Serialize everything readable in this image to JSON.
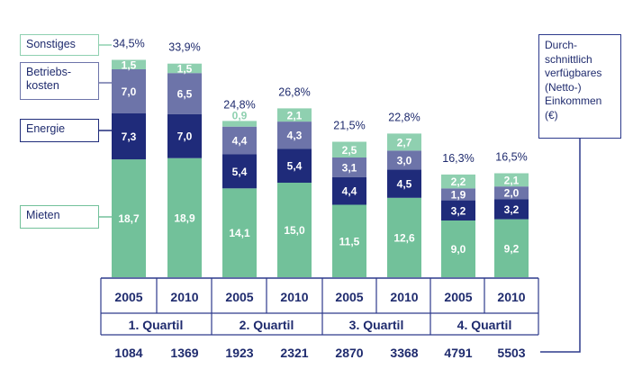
{
  "chart_data": {
    "type": "bar",
    "stacked": true,
    "categories": [
      "2005",
      "2010",
      "2005",
      "2010",
      "2005",
      "2010",
      "2005",
      "2010"
    ],
    "groups": [
      {
        "label": "1. Quartil",
        "years": [
          "2005",
          "2010"
        ]
      },
      {
        "label": "2. Quartil",
        "years": [
          "2005",
          "2010"
        ]
      },
      {
        "label": "3. Quartil",
        "years": [
          "2005",
          "2010"
        ]
      },
      {
        "label": "4. Quartil",
        "years": [
          "2005",
          "2010"
        ]
      }
    ],
    "series": [
      {
        "name": "Mieten",
        "color": "#72c19a",
        "values": [
          18.7,
          18.9,
          14.1,
          15.0,
          11.5,
          12.6,
          9.0,
          9.2
        ],
        "labels": [
          "18,7",
          "18,9",
          "14,1",
          "15,0",
          "11,5",
          "12,6",
          "9,0",
          "9,2"
        ]
      },
      {
        "name": "Energie",
        "color": "#1f2b7a",
        "values": [
          7.3,
          7.0,
          5.4,
          5.4,
          4.4,
          4.5,
          3.2,
          3.2
        ],
        "labels": [
          "7,3",
          "7,0",
          "5,4",
          "5,4",
          "4,4",
          "4,5",
          "3,2",
          "3,2"
        ]
      },
      {
        "name": "Betriebs-\nkosten",
        "color": "#6d74a9",
        "values": [
          7.0,
          6.5,
          4.4,
          4.3,
          3.1,
          3.0,
          1.9,
          2.0
        ],
        "labels": [
          "7,0",
          "6,5",
          "4,4",
          "4,3",
          "3,1",
          "3,0",
          "1,9",
          "2,0"
        ]
      },
      {
        "name": "Sonstiges",
        "color": "#8fd0b0",
        "values": [
          1.5,
          1.5,
          0.9,
          2.1,
          2.5,
          2.7,
          2.2,
          2.1
        ],
        "labels": [
          "1,5",
          "1,5",
          "0,9",
          "2,1",
          "2,5",
          "2,7",
          "2,2",
          "2,1"
        ]
      }
    ],
    "totals": [
      "34,5%",
      "33,9%",
      "24,8%",
      "26,8%",
      "21,5%",
      "22,8%",
      "16,3%",
      "16,5%"
    ],
    "incomes": [
      "1084",
      "1369",
      "1923",
      "2321",
      "2870",
      "3368",
      "4791",
      "5503"
    ],
    "side_label": "Durch-\nschnittlich\nverfügbares\n(Netto-)\nEinkommen\n(€)",
    "ylim": [
      0,
      35
    ]
  }
}
